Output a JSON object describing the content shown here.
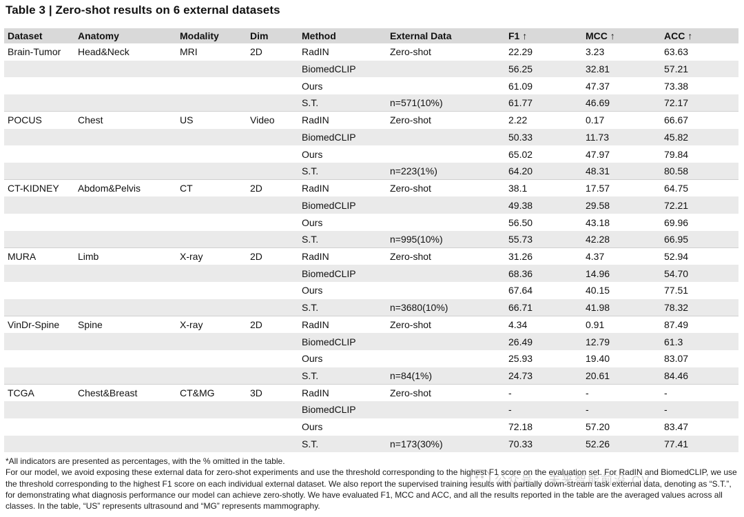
{
  "title": "Table 3 | Zero-shot results on 6 external datasets",
  "headers": [
    "Dataset",
    "Anatomy",
    "Modality",
    "Dim",
    "Method",
    "External Data",
    "F1 ↑",
    "MCC ↑",
    "ACC ↑"
  ],
  "rows": [
    [
      "Brain-Tumor",
      "Head&Neck",
      "MRI",
      "2D",
      "RadIN",
      "Zero-shot",
      "22.29",
      "3.23",
      "63.63"
    ],
    [
      "",
      "",
      "",
      "",
      "BiomedCLIP",
      "",
      "56.25",
      "32.81",
      "57.21"
    ],
    [
      "",
      "",
      "",
      "",
      "Ours",
      "",
      "61.09",
      "47.37",
      "73.38"
    ],
    [
      "",
      "",
      "",
      "",
      "S.T.",
      "n=571(10%)",
      "61.77",
      "46.69",
      "72.17"
    ],
    [
      "POCUS",
      "Chest",
      "US",
      "Video",
      "RadIN",
      "Zero-shot",
      "2.22",
      "0.17",
      "66.67"
    ],
    [
      "",
      "",
      "",
      "",
      "BiomedCLIP",
      "",
      "50.33",
      "11.73",
      "45.82"
    ],
    [
      "",
      "",
      "",
      "",
      "Ours",
      "",
      "65.02",
      "47.97",
      "79.84"
    ],
    [
      "",
      "",
      "",
      "",
      "S.T.",
      "n=223(1%)",
      "64.20",
      "48.31",
      "80.58"
    ],
    [
      "CT-KIDNEY",
      "Abdom&Pelvis",
      "CT",
      "2D",
      "RadIN",
      "Zero-shot",
      "38.1",
      "17.57",
      "64.75"
    ],
    [
      "",
      "",
      "",
      "",
      "BiomedCLIP",
      "",
      "49.38",
      "29.58",
      "72.21"
    ],
    [
      "",
      "",
      "",
      "",
      "Ours",
      "",
      "56.50",
      "43.18",
      "69.96"
    ],
    [
      "",
      "",
      "",
      "",
      "S.T.",
      "n=995(10%)",
      "55.73",
      "42.28",
      "66.95"
    ],
    [
      "MURA",
      "Limb",
      "X-ray",
      "2D",
      "RadIN",
      "Zero-shot",
      "31.26",
      "4.37",
      "52.94"
    ],
    [
      "",
      "",
      "",
      "",
      "BiomedCLIP",
      "",
      "68.36",
      "14.96",
      "54.70"
    ],
    [
      "",
      "",
      "",
      "",
      "Ours",
      "",
      "67.64",
      "40.15",
      "77.51"
    ],
    [
      "",
      "",
      "",
      "",
      "S.T.",
      "n=3680(10%)",
      "66.71",
      "41.98",
      "78.32"
    ],
    [
      "VinDr-Spine",
      "Spine",
      "X-ray",
      "2D",
      "RadIN",
      "Zero-shot",
      "4.34",
      "0.91",
      "87.49"
    ],
    [
      "",
      "",
      "",
      "",
      "BiomedCLIP",
      "",
      "26.49",
      "12.79",
      "61.3"
    ],
    [
      "",
      "",
      "",
      "",
      "Ours",
      "",
      "25.93",
      "19.40",
      "83.07"
    ],
    [
      "",
      "",
      "",
      "",
      "S.T.",
      "n=84(1%)",
      "24.73",
      "20.61",
      "84.46"
    ],
    [
      "TCGA",
      "Chest&Breast",
      "CT&MG",
      "3D",
      "RadIN",
      "Zero-shot",
      "-",
      "-",
      "-"
    ],
    [
      "",
      "",
      "",
      "",
      "BiomedCLIP",
      "",
      "-",
      "-",
      "-"
    ],
    [
      "",
      "",
      "",
      "",
      "Ours",
      "",
      "72.18",
      "57.20",
      "83.47"
    ],
    [
      "",
      "",
      "",
      "",
      "S.T.",
      "n=173(30%)",
      "70.33",
      "52.26",
      "77.41"
    ]
  ],
  "footnotes": [
    "*All indicators are presented as percentages, with the % omitted in the table.",
    "For our model, we avoid exposing these external data for zero-shot experiments and use the threshold corresponding to the highest F1 score on the evaluation set. For RadIN and BiomedCLIP, we use the threshold corresponding to the highest F1 score on each individual external dataset. We also report the supervised training results with partially down-stream task external data, denoting as “S.T.”, for demonstrating what diagnosis performance our model can achieve zero-shotly. We have evaluated F1, MCC and ACC, and all the results reported in the table are the averaged values across all classes. In the table, “US” represents ultrasound and “MG” represents mammography."
  ],
  "watermark": "公众号 · 未来智能前沿 CV",
  "colors": {
    "header_bg": "#d9d9d9",
    "shaded_row_bg": "#eaeaea"
  }
}
